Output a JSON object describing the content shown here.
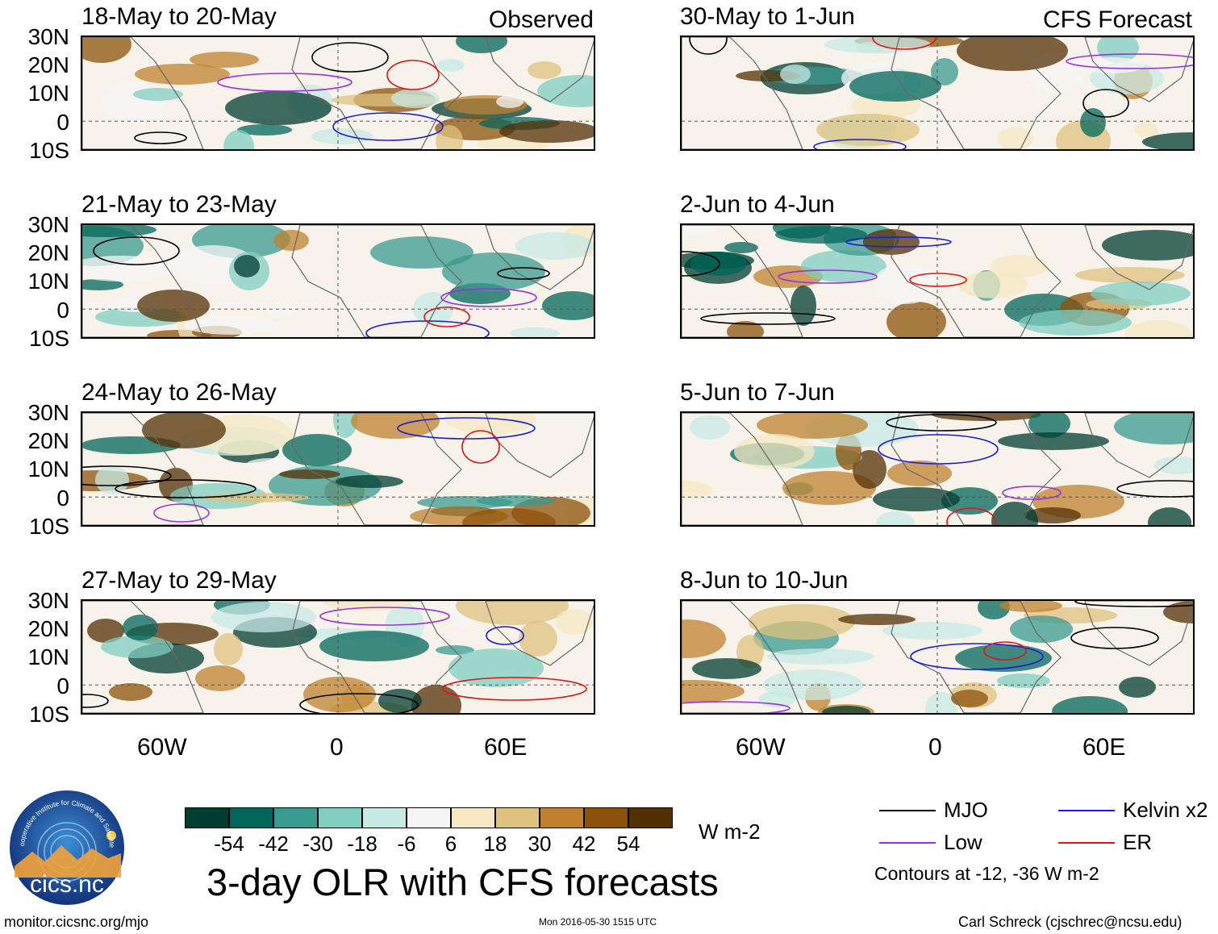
{
  "headers": {
    "observed": "Observed",
    "forecast": "CFS Forecast"
  },
  "panels_left": [
    {
      "title": "18-May to 20-May"
    },
    {
      "title": "21-May to 23-May"
    },
    {
      "title": "24-May to 26-May"
    },
    {
      "title": "27-May to 29-May"
    }
  ],
  "panels_right": [
    {
      "title": "30-May to 1-Jun"
    },
    {
      "title": "2-Jun to 4-Jun"
    },
    {
      "title": "5-Jun to 7-Jun"
    },
    {
      "title": "8-Jun to 10-Jun"
    }
  ],
  "lat_labels": [
    "30N",
    "20N",
    "10N",
    "0",
    "10S"
  ],
  "lon_labels": [
    "60W",
    "0",
    "60E"
  ],
  "colorbar": {
    "colors": [
      "#013c30",
      "#02665a",
      "#399a8f",
      "#80cdc1",
      "#c7eae5",
      "#f5f5f5",
      "#f6e8c3",
      "#dfc27d",
      "#bf812d",
      "#8c510a",
      "#543005"
    ],
    "ticks": [
      "-54",
      "-42",
      "-30",
      "-18",
      "-6",
      "6",
      "18",
      "30",
      "42",
      "54"
    ],
    "units": "W m-2"
  },
  "title": "3-day OLR with CFS forecasts",
  "legend": {
    "items": [
      {
        "label": "MJO",
        "color": "#000000"
      },
      {
        "label": "Kelvin x2",
        "color": "#1a1adc"
      },
      {
        "label": "Low",
        "color": "#9b30e0"
      },
      {
        "label": "ER",
        "color": "#e01414"
      }
    ],
    "note": "Contours at -12, -36 W m-2"
  },
  "logo": {
    "text": "cics.nc",
    "ring_text": "Cooperative Institute for Climate and Satellites"
  },
  "footer": {
    "url": "monitor.cicsnc.org/mjo",
    "timestamp": "Mon 2016-05-30 1515 UTC",
    "author": "Carl Schreck (cjschrec@ncsu.edu)"
  }
}
